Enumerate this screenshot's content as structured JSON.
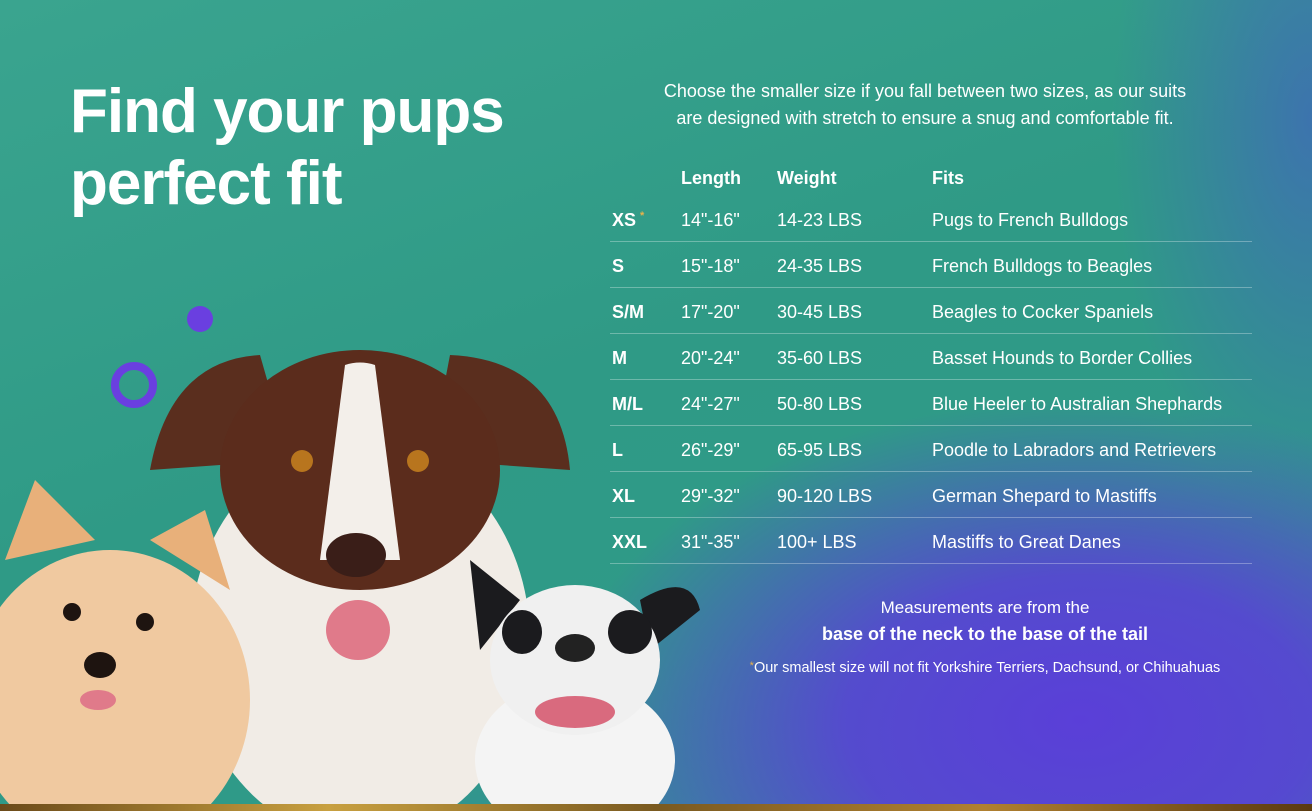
{
  "headline": {
    "line1": "Find your pups",
    "line2": "perfect fit"
  },
  "intro": {
    "line1": "Choose the smaller size if you fall between two sizes, as our suits",
    "line2": "are designed with stretch to ensure a snug and comfortable fit."
  },
  "table": {
    "headers": [
      "",
      "Length",
      "Weight",
      "Fits"
    ],
    "rows": [
      {
        "size": "XS",
        "mark": "*",
        "length": "14\"-16\"",
        "weight": "14-23 LBS",
        "fits": "Pugs to French Bulldogs"
      },
      {
        "size": "S",
        "length": "15\"-18\"",
        "weight": "24-35 LBS",
        "fits": "French Bulldogs to Beagles"
      },
      {
        "size": "S/M",
        "length": "17\"-20\"",
        "weight": "30-45 LBS",
        "fits": "Beagles to Cocker Spaniels"
      },
      {
        "size": "M",
        "length": "20\"-24\"",
        "weight": "35-60 LBS",
        "fits": "Basset Hounds to Border Collies"
      },
      {
        "size": "M/L",
        "length": "24\"-27\"",
        "weight": "50-80 LBS",
        "fits": "Blue Heeler to Australian Shephards"
      },
      {
        "size": "L",
        "length": "26\"-29\"",
        "weight": "65-95 LBS",
        "fits": "Poodle to Labradors and Retrievers"
      },
      {
        "size": "XL",
        "length": "29\"-32\"",
        "weight": "90-120 LBS",
        "fits": "German Shepard to Mastiffs"
      },
      {
        "size": "XXL",
        "length": "31\"-35\"",
        "weight": "100+ LBS",
        "fits": "Mastiffs to Great Danes"
      }
    ]
  },
  "measurement": {
    "line1": "Measurements are from the",
    "line2": "base of the neck to the base of the tail"
  },
  "footnote": {
    "mark": "*",
    "text": "Our smallest size will not fit Yorkshire Terriers, Dachsund, or Chihuahuas"
  },
  "colors": {
    "accent_star": "#e8b24a",
    "purple_circle": "#6a3fe0",
    "teal_bg": "#2f9a86",
    "purple_bg": "#5a3fd8"
  }
}
